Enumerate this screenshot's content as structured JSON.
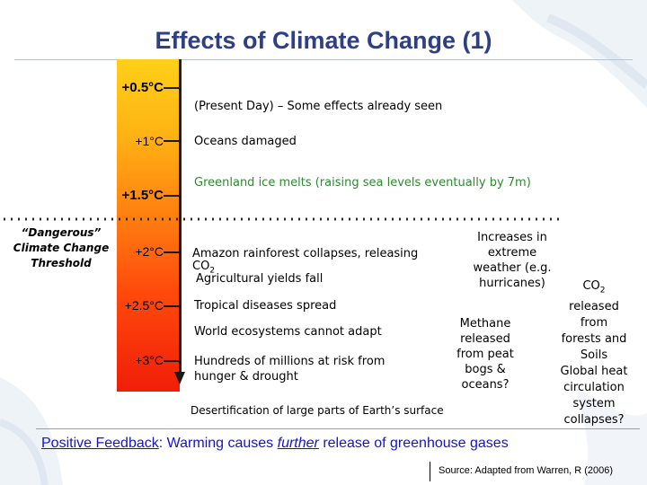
{
  "slide": {
    "title": "Effects of Climate Change (1)",
    "temperatures": [
      "+0.5°C",
      "+1°C",
      "+1.5°C",
      "+2°C",
      "+2.5°C",
      "+3°C"
    ],
    "threshold_label": [
      "“Dangerous”",
      "Climate Change",
      "Threshold"
    ],
    "effects": {
      "present_day": "(Present Day) – Some effects already seen",
      "oceans": "Oceans damaged",
      "greenland": "Greenland ice melts (raising sea levels eventually by 7m)",
      "amazon_line1": "Amazon rainforest collapses, releasing",
      "amazon_line2": "CO",
      "amazon_sub": "2",
      "agriculture": "Agricultural yields fall",
      "weather": [
        "Increases in",
        "extreme",
        "weather (e.g.",
        "hurricanes)"
      ],
      "tropical": "Tropical diseases spread",
      "ecosystems": "World ecosystems cannot adapt",
      "methane": [
        "Methane",
        "released",
        "from peat",
        "bogs &",
        "oceans?"
      ],
      "hunger": [
        "Hundreds of millions at risk from",
        "hunger & drought"
      ],
      "desertification": "Desertification of large parts of Earth’s surface",
      "co2_title": "CO",
      "co2_sub": "2",
      "co2_rest": [
        "released",
        "from",
        "forests and",
        "Soils",
        "Global heat",
        "circulation",
        "system",
        "collapses?"
      ]
    },
    "feedback": {
      "part1": "Positive Feedback",
      "part2": ": Warming causes ",
      "part3": "further",
      "part4": " release of greenhouse gases"
    },
    "source": "Source: Adapted from Warren, R (2006)"
  },
  "colors": {
    "title": "#2e3f86",
    "greenland": "#2c8a2e",
    "feedback": "#1515c8"
  }
}
